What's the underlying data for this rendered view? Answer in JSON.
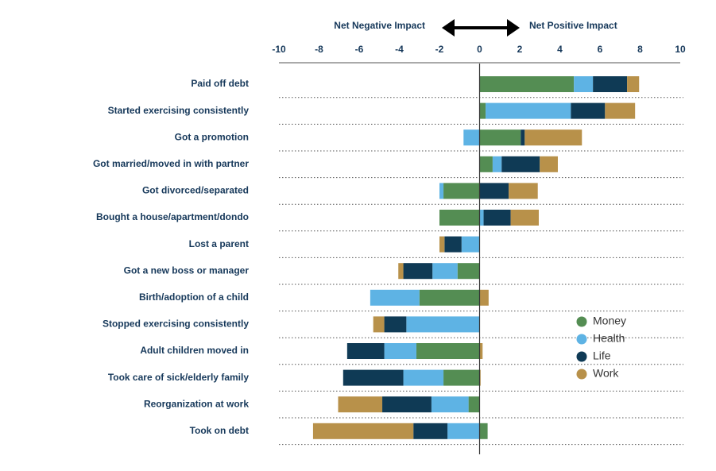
{
  "chart_data": {
    "type": "diverging-stacked-bar",
    "negative_label": "Net Negative Impact",
    "positive_label": "Net Positive Impact",
    "categories": [
      "Paid off debt",
      "Started exercising consistently",
      "Got a promotion",
      "Got married/moved in with partner",
      "Got divorced/separated",
      "Bought a house/apartment/dondo",
      "Lost a parent",
      "Got a new boss or manager",
      "Birth/adoption of a child",
      "Stopped exercising consistently",
      "Adult children moved in",
      "Took care of sick/elderly family",
      "Reorganization at work",
      "Took on debt"
    ],
    "series": [
      {
        "name": "Money",
        "color": "#548d53",
        "values": [
          4.7,
          0.3,
          2.05,
          0.65,
          -1.8,
          -2.0,
          0,
          -1.1,
          -3.0,
          0,
          -3.15,
          -1.8,
          -0.55,
          0.4
        ]
      },
      {
        "name": "Health",
        "color": "#5eb3e4",
        "values": [
          0.95,
          4.25,
          -0.8,
          0.45,
          -0.2,
          0.2,
          -0.9,
          -1.25,
          -2.45,
          -3.65,
          -1.6,
          -2.0,
          -1.85,
          -1.6
        ]
      },
      {
        "name": "Life",
        "color": "#0f3a55",
        "values": [
          1.7,
          1.7,
          0.2,
          1.9,
          1.45,
          1.35,
          -0.85,
          -1.45,
          0,
          -1.1,
          -1.85,
          -3.0,
          -2.45,
          -1.7
        ]
      },
      {
        "name": "Work",
        "color": "#b8914a",
        "values": [
          0.6,
          1.5,
          2.85,
          0.9,
          1.45,
          1.4,
          -0.25,
          -0.25,
          0.45,
          -0.55,
          0.15,
          0.05,
          -2.2,
          -5.0
        ]
      }
    ],
    "xlim": [
      -10,
      10
    ],
    "xticks": [
      -10,
      -8,
      -6,
      -4,
      -2,
      0,
      2,
      4,
      6,
      8,
      10
    ]
  }
}
